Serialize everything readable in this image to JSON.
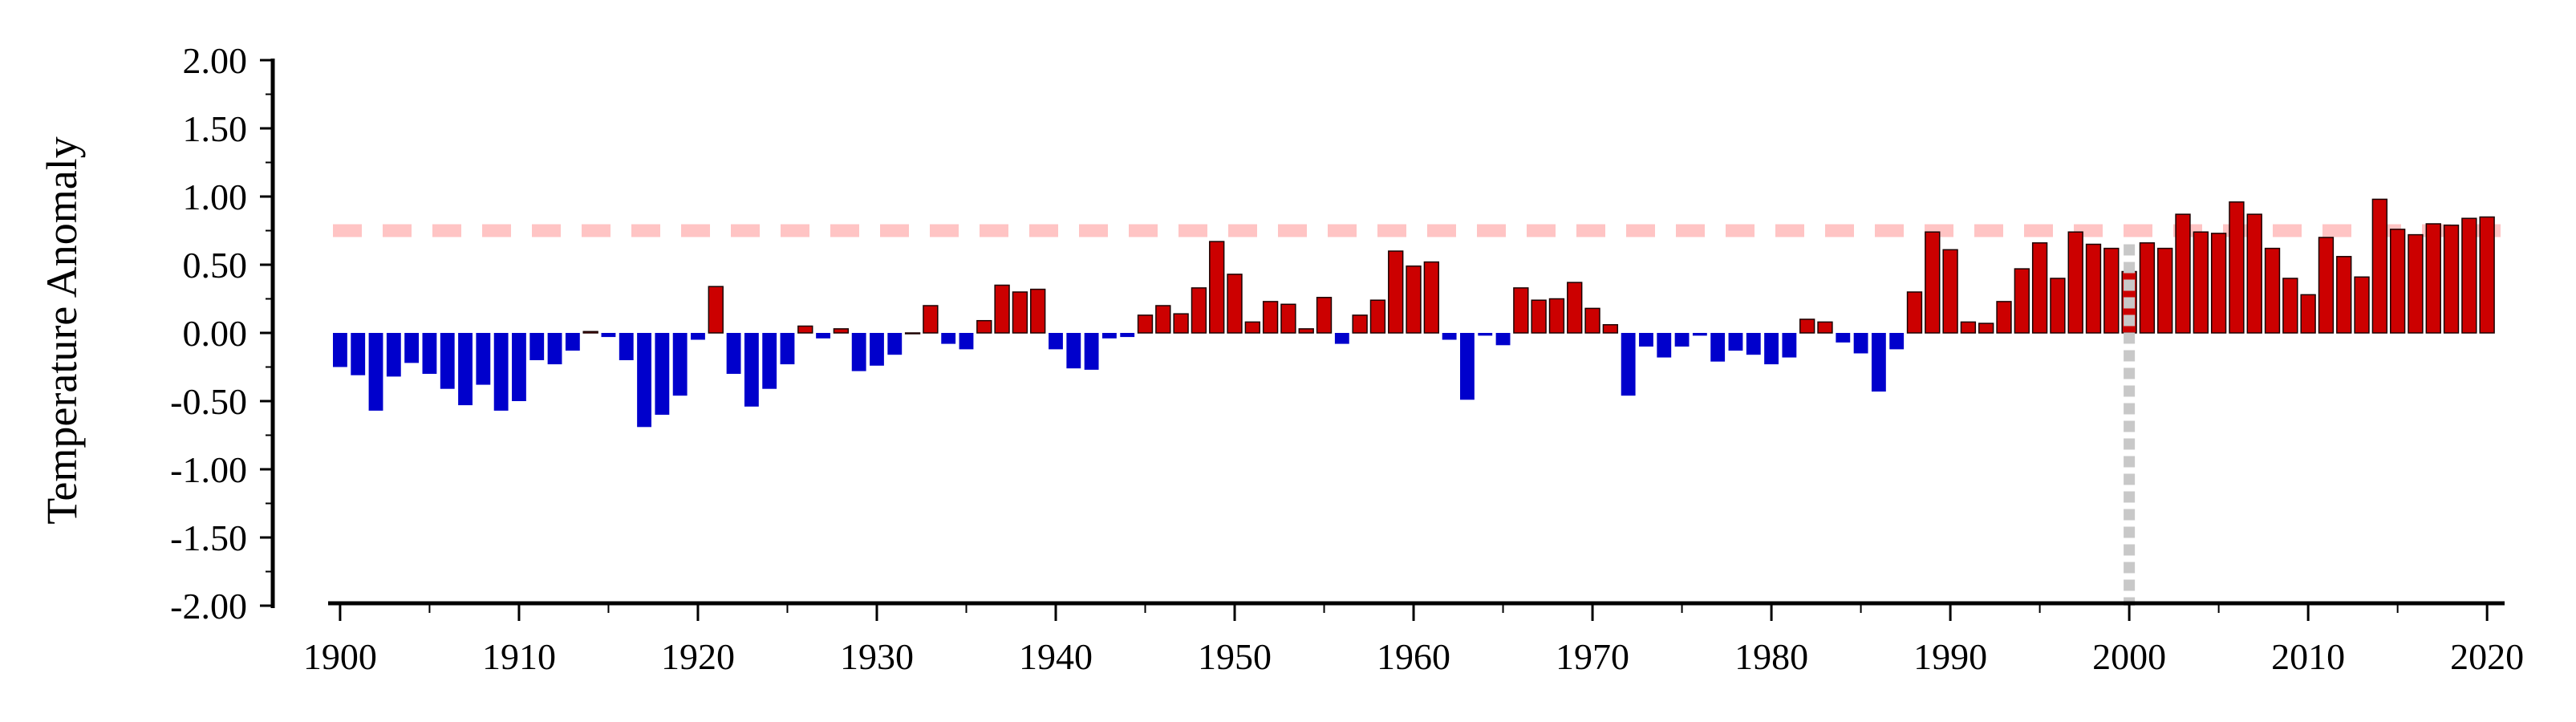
{
  "chart_data": {
    "type": "bar",
    "title": "",
    "xlabel": "",
    "ylabel": "Temperature Anomaly",
    "x_start": 1900,
    "x_end": 2020,
    "xlim": [
      1899.6,
      2020.8
    ],
    "ylim": [
      -2.0,
      2.0
    ],
    "yticks": [
      -2.0,
      -1.5,
      -1.0,
      -0.5,
      0.0,
      0.5,
      1.0,
      1.5,
      2.0
    ],
    "ytick_labels": [
      "-2.00",
      "-1.50",
      "-1.00",
      "-0.50",
      "0.00",
      "0.50",
      "1.00",
      "1.50",
      "2.00"
    ],
    "xticks": [
      1900,
      1910,
      1920,
      1930,
      1940,
      1950,
      1960,
      1970,
      1980,
      1990,
      2000,
      2010,
      2020
    ],
    "xtick_labels": [
      "1900",
      "1910",
      "1920",
      "1930",
      "1940",
      "1950",
      "1960",
      "1970",
      "1980",
      "1990",
      "2000",
      "2010",
      "2020"
    ],
    "grid": false,
    "legend": "none",
    "colors": {
      "positive": "#cc0000",
      "negative": "#0000cc",
      "reference_line": "#ffc4c4",
      "marker_line": "#c8c8c8"
    },
    "reference_line": {
      "orientation": "horizontal",
      "y": 0.75,
      "style": "dashed"
    },
    "marker_line": {
      "orientation": "vertical",
      "x": 2000,
      "y_from": -2.0,
      "y_to": 0.65,
      "style": "dotted"
    },
    "values": [
      -0.25,
      -0.31,
      -0.57,
      -0.32,
      -0.22,
      -0.3,
      -0.41,
      -0.53,
      -0.38,
      -0.57,
      -0.5,
      -0.2,
      -0.23,
      -0.13,
      0.01,
      -0.03,
      -0.2,
      -0.69,
      -0.6,
      -0.46,
      -0.05,
      0.34,
      -0.3,
      -0.54,
      -0.41,
      -0.23,
      0.05,
      -0.04,
      0.03,
      -0.28,
      -0.24,
      -0.16,
      0.0,
      0.2,
      -0.08,
      -0.12,
      0.09,
      0.35,
      0.3,
      0.32,
      -0.12,
      -0.26,
      -0.27,
      -0.04,
      -0.03,
      0.13,
      0.2,
      0.14,
      0.33,
      0.67,
      0.43,
      0.08,
      0.23,
      0.21,
      0.03,
      0.26,
      -0.08,
      0.13,
      0.24,
      0.6,
      0.49,
      0.52,
      -0.05,
      -0.49,
      -0.02,
      -0.09,
      0.33,
      0.24,
      0.25,
      0.37,
      0.18,
      0.06,
      -0.46,
      -0.1,
      -0.18,
      -0.1,
      -0.02,
      -0.21,
      -0.13,
      -0.16,
      -0.23,
      -0.18,
      0.1,
      0.08,
      -0.07,
      -0.15,
      -0.43,
      -0.12,
      0.3,
      0.74,
      0.61,
      0.08,
      0.07,
      0.23,
      0.47,
      0.66,
      0.4,
      0.74,
      0.65,
      0.62,
      0.45,
      0.66,
      0.62,
      0.87,
      0.74,
      0.73,
      0.96,
      0.87,
      0.62,
      0.4,
      0.28,
      0.7,
      0.56,
      0.41,
      0.98,
      0.76,
      0.72,
      0.8,
      0.79,
      0.84,
      0.85
    ]
  }
}
